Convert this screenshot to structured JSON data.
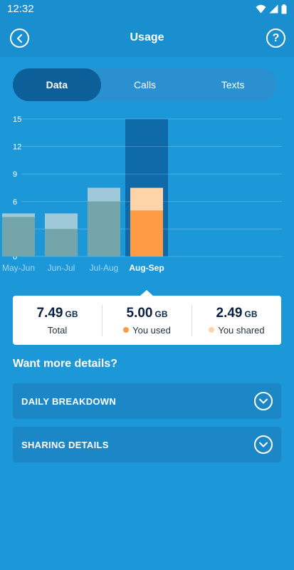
{
  "status_bar": {
    "time": "12:32"
  },
  "header": {
    "title": "Usage",
    "back_icon": "chevron-left-icon",
    "help_label": "?"
  },
  "tabs": [
    {
      "label": "Data",
      "active": true
    },
    {
      "label": "Calls",
      "active": false
    },
    {
      "label": "Texts",
      "active": false
    }
  ],
  "chart_data": {
    "type": "bar",
    "categories": [
      "May-Jun",
      "Jun-Jul",
      "Jul-Aug",
      "Aug-Sep"
    ],
    "series": [
      {
        "values": [
          4.3,
          3.0,
          6.0,
          5.0
        ]
      },
      {
        "values": [
          0.4,
          1.7,
          1.5,
          2.49
        ]
      }
    ],
    "selected_category": "Aug-Sep",
    "yticks": [
      0,
      3,
      6,
      9,
      12,
      15
    ],
    "ylim": [
      0,
      15
    ],
    "colors": {
      "used": "#ff9a45",
      "shared": "#ffd3a8",
      "past_used": "#74a5ab",
      "past_shared": "#9fc8d9",
      "highlight": "#0e6aa8"
    }
  },
  "summary": {
    "total": {
      "value": "7.49",
      "unit": "GB",
      "label": "Total"
    },
    "used": {
      "value": "5.00",
      "unit": "GB",
      "label": "You used",
      "color": "#ff9a45"
    },
    "shared": {
      "value": "2.49",
      "unit": "GB",
      "label": "You shared",
      "color": "#ffd3a8"
    }
  },
  "details": {
    "heading": "Want more details?",
    "items": [
      {
        "label": "DAILY BREAKDOWN",
        "icon": "chevron-down-icon"
      },
      {
        "label": "SHARING DETAILS",
        "icon": "chevron-down-icon"
      }
    ]
  }
}
